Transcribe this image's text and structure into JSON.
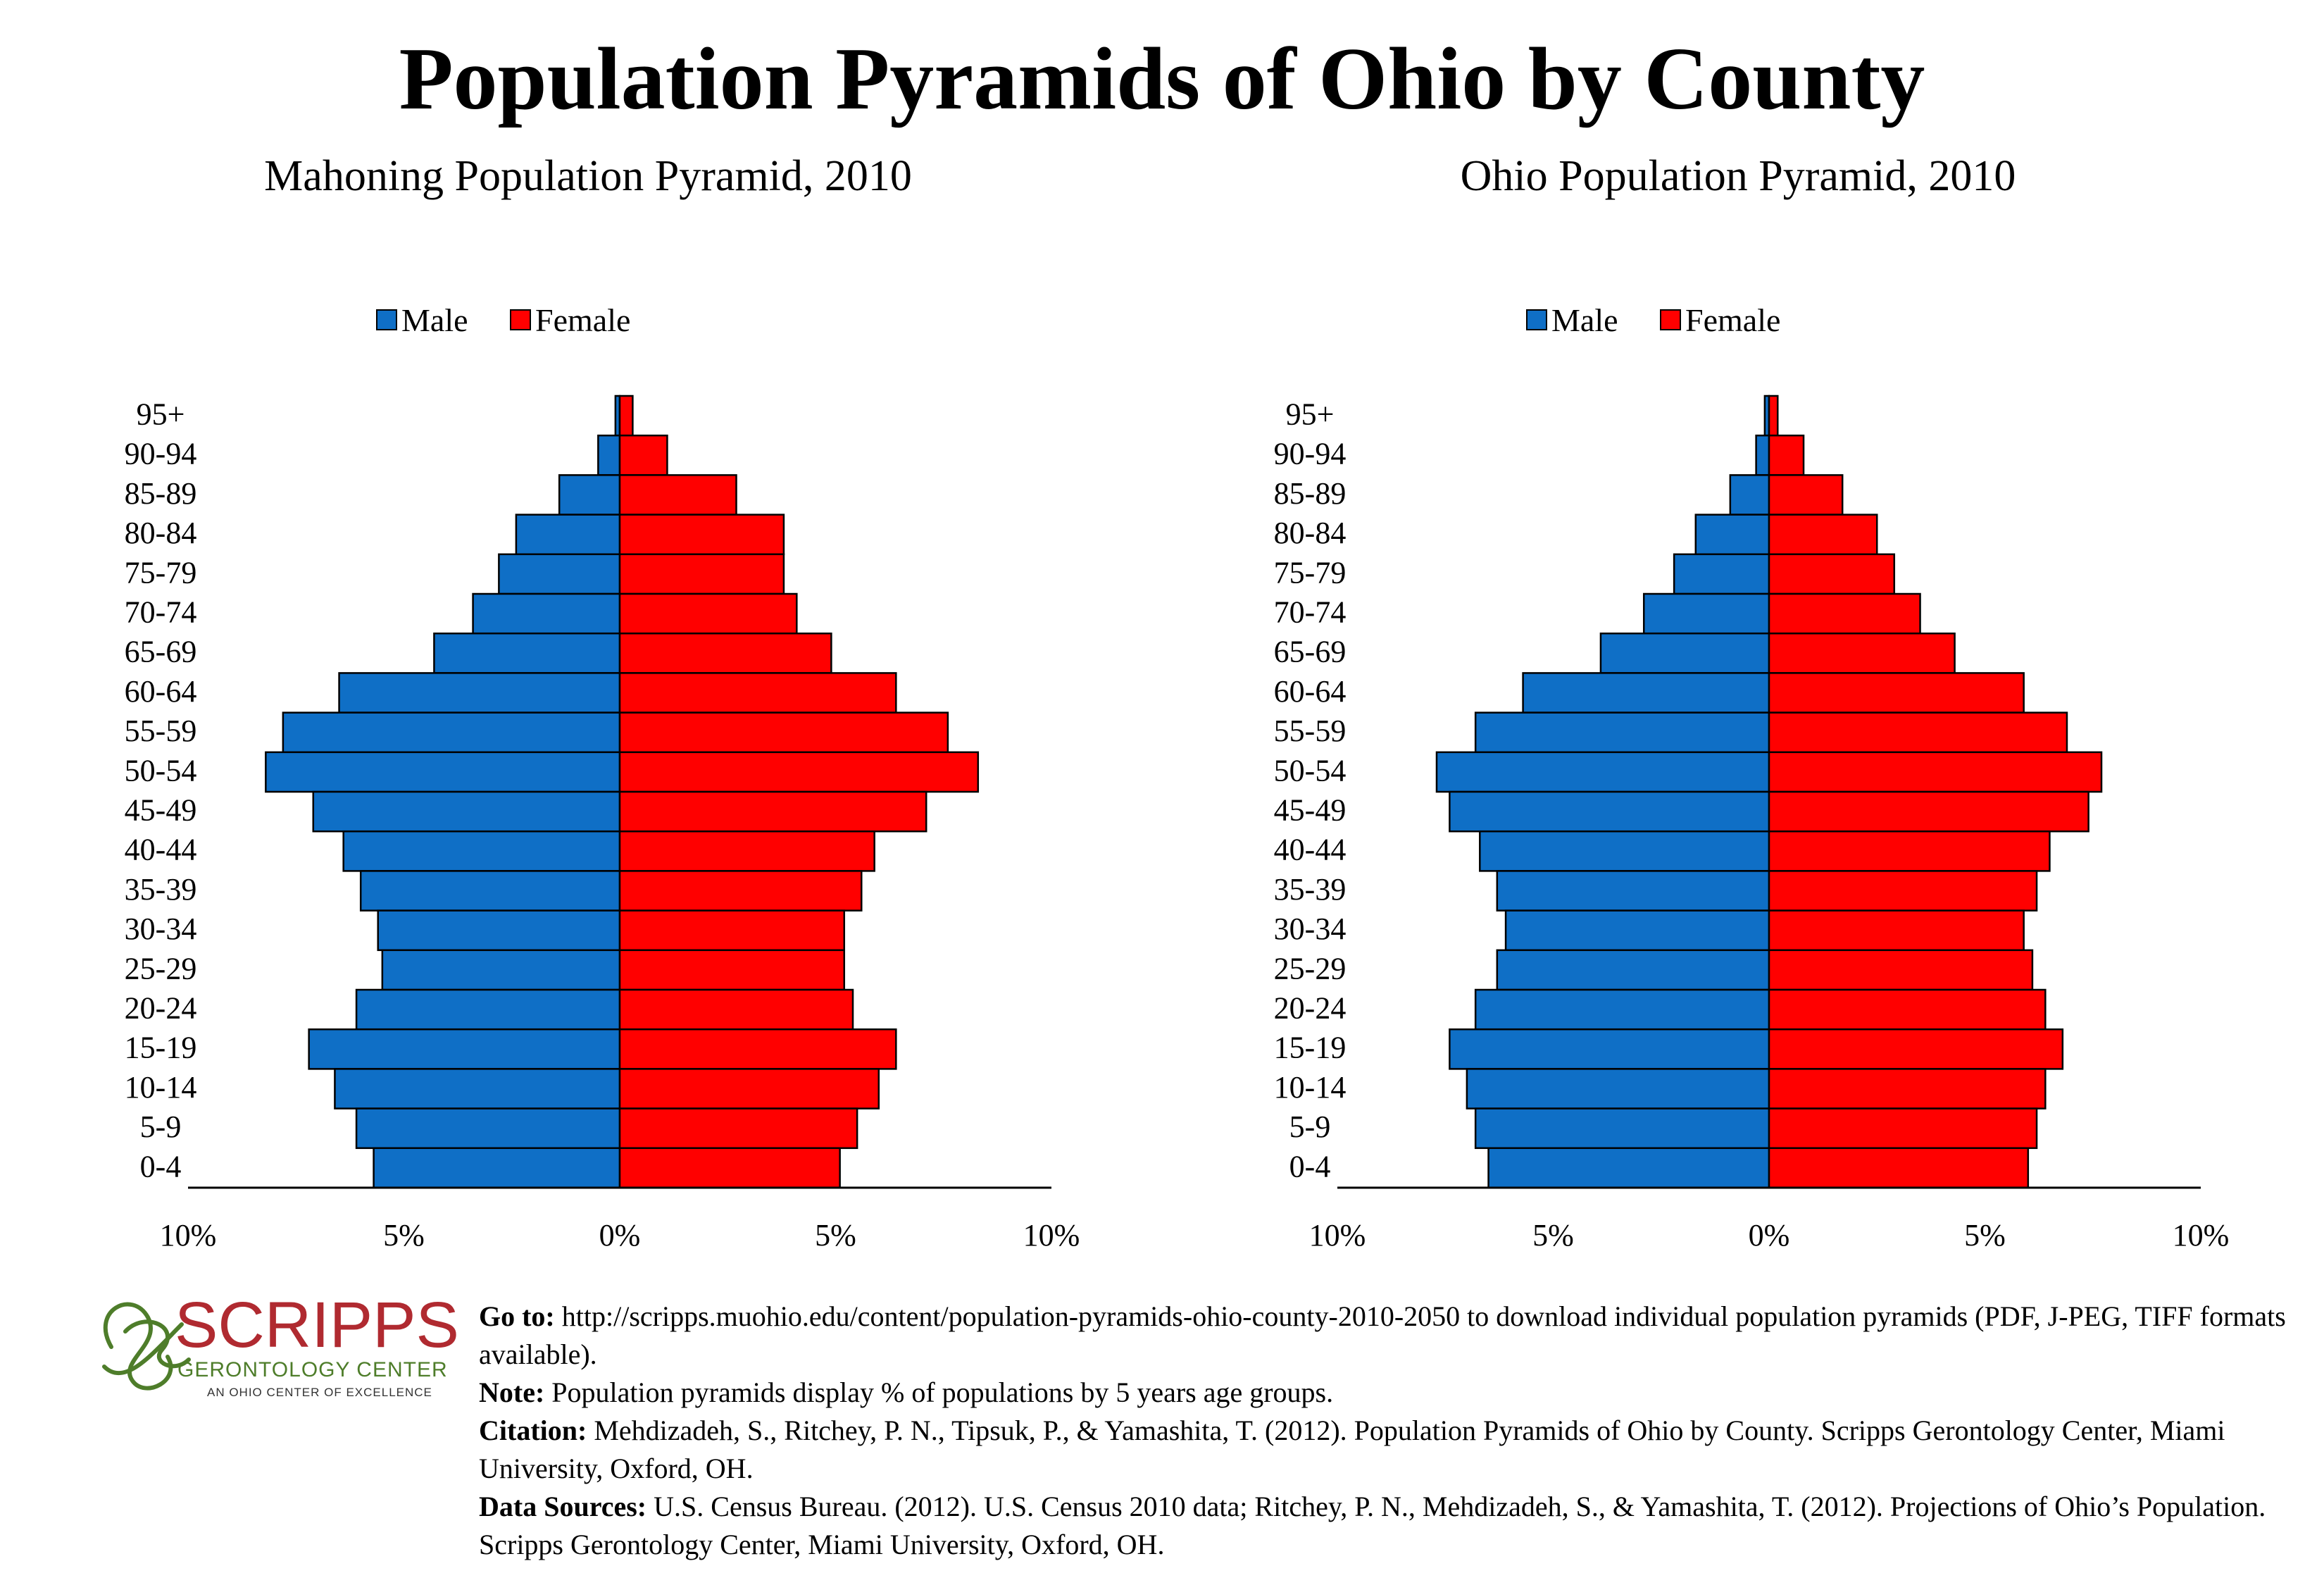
{
  "title": "Population Pyramids of Ohio by County",
  "colors": {
    "male": "#0f6fc6",
    "female": "#ff0000",
    "logo": "#b02a30",
    "logo_mark": "#4e7d2a"
  },
  "chart_data": [
    {
      "type": "bar",
      "title": "Mahoning Population Pyramid, 2010",
      "categories": [
        "95+",
        "90-94",
        "85-89",
        "80-84",
        "75-79",
        "70-74",
        "65-69",
        "60-64",
        "55-59",
        "50-54",
        "45-49",
        "40-44",
        "35-39",
        "30-34",
        "25-29",
        "20-24",
        "15-19",
        "10-14",
        "5-9",
        "0-4"
      ],
      "series": [
        {
          "name": "Male",
          "values": [
            0.1,
            0.5,
            1.4,
            2.4,
            2.8,
            3.4,
            4.3,
            6.5,
            7.8,
            8.2,
            7.1,
            6.4,
            6.0,
            5.6,
            5.5,
            6.1,
            7.2,
            6.6,
            6.1,
            5.7
          ]
        },
        {
          "name": "Female",
          "values": [
            0.3,
            1.1,
            2.7,
            3.8,
            3.8,
            4.1,
            4.9,
            6.4,
            7.6,
            8.3,
            7.1,
            5.9,
            5.6,
            5.2,
            5.2,
            5.4,
            6.4,
            6.0,
            5.5,
            5.1
          ]
        }
      ],
      "xlim": [
        -10,
        10
      ],
      "xticks": [
        "10%",
        "5%",
        "0%",
        "5%",
        "10%"
      ],
      "legend": "top-center"
    },
    {
      "type": "bar",
      "title": "Ohio Population Pyramid, 2010",
      "categories": [
        "95+",
        "90-94",
        "85-89",
        "80-84",
        "75-79",
        "70-74",
        "65-69",
        "60-64",
        "55-59",
        "50-54",
        "45-49",
        "40-44",
        "35-39",
        "30-34",
        "25-29",
        "20-24",
        "15-19",
        "10-14",
        "5-9",
        "0-4"
      ],
      "series": [
        {
          "name": "Male",
          "values": [
            0.1,
            0.3,
            0.9,
            1.7,
            2.2,
            2.9,
            3.9,
            5.7,
            6.8,
            7.7,
            7.4,
            6.7,
            6.3,
            6.1,
            6.3,
            6.8,
            7.4,
            7.0,
            6.8,
            6.5
          ]
        },
        {
          "name": "Female",
          "values": [
            0.2,
            0.8,
            1.7,
            2.5,
            2.9,
            3.5,
            4.3,
            5.9,
            6.9,
            7.7,
            7.4,
            6.5,
            6.2,
            5.9,
            6.1,
            6.4,
            6.8,
            6.4,
            6.2,
            6.0
          ]
        }
      ],
      "xlim": [
        -10,
        10
      ],
      "xticks": [
        "10%",
        "5%",
        "0%",
        "5%",
        "10%"
      ],
      "legend": "top-center"
    }
  ],
  "logo": {
    "name": "SCRIPPS",
    "line1": "GERONTOLOGY CENTER",
    "line2": "AN OHIO CENTER OF EXCELLENCE"
  },
  "footer": {
    "goto_label": "Go to:",
    "goto_text": "http://scripps.muohio.edu/content/population-pyramids-ohio-county-2010-2050 to download individual population pyramids (PDF, J-PEG, TIFF formats available).",
    "note_label": "Note:",
    "note_text": "Population pyramids display % of populations by 5 years age groups.",
    "citation_label": "Citation:",
    "citation_text": "Mehdizadeh, S., Ritchey, P. N., Tipsuk, P., & Yamashita, T. (2012). Population Pyramids of Ohio by County. Scripps Gerontology Center, Miami University, Oxford, OH.",
    "sources_label": "Data Sources:",
    "sources_text": "U.S. Census Bureau. (2012). U.S. Census 2010 data; Ritchey, P. N., Mehdizadeh, S., & Yamashita, T. (2012). Projections of Ohio’s Population. Scripps Gerontology Center, Miami University, Oxford, OH."
  }
}
